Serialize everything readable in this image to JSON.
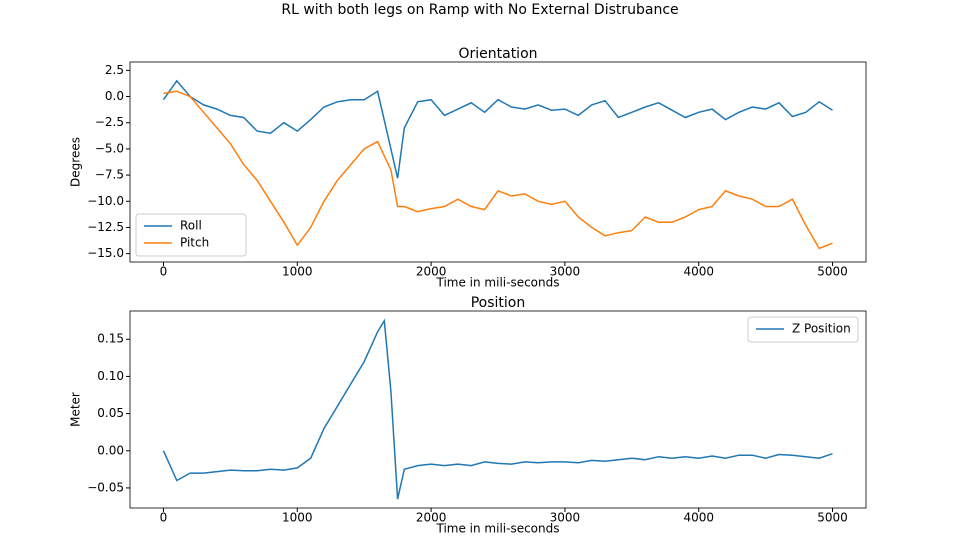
{
  "title": "RL with both legs on Ramp with No External Distrubance",
  "chart_data": [
    {
      "type": "line",
      "title": "Orientation",
      "xlabel": "Time in mili-seconds",
      "ylabel": "Degrees",
      "x": [
        0,
        100,
        200,
        300,
        400,
        500,
        600,
        700,
        800,
        900,
        1000,
        1100,
        1200,
        1300,
        1400,
        1500,
        1600,
        1700,
        1750,
        1800,
        1900,
        2000,
        2100,
        2200,
        2300,
        2400,
        2500,
        2600,
        2700,
        2800,
        2900,
        3000,
        3100,
        3200,
        3300,
        3400,
        3500,
        3600,
        3700,
        3800,
        3900,
        4000,
        4100,
        4200,
        4300,
        4400,
        4500,
        4600,
        4700,
        4800,
        4900,
        5000
      ],
      "series": [
        {
          "name": "Roll",
          "color": "#1f77b4",
          "values": [
            -0.3,
            1.5,
            0.0,
            -0.8,
            -1.2,
            -1.8,
            -2.0,
            -3.3,
            -3.5,
            -2.5,
            -3.3,
            -2.2,
            -1.0,
            -0.5,
            -0.3,
            -0.3,
            0.5,
            -5.0,
            -7.8,
            -3.0,
            -0.5,
            -0.3,
            -1.8,
            -1.2,
            -0.6,
            -1.5,
            -0.3,
            -1.0,
            -1.2,
            -0.8,
            -1.3,
            -1.2,
            -1.8,
            -0.8,
            -0.4,
            -2.0,
            -1.5,
            -1.0,
            -0.6,
            -1.3,
            -2.0,
            -1.5,
            -1.2,
            -2.2,
            -1.5,
            -1.0,
            -1.2,
            -0.6,
            -1.9,
            -1.5,
            -0.5,
            -1.3
          ]
        },
        {
          "name": "Pitch",
          "color": "#ff7f0e",
          "values": [
            0.3,
            0.5,
            0.0,
            -1.5,
            -3.0,
            -4.5,
            -6.5,
            -8.0,
            -10.0,
            -12.0,
            -14.2,
            -12.5,
            -10.0,
            -8.0,
            -6.5,
            -5.0,
            -4.3,
            -7.0,
            -10.5,
            -10.5,
            -11.0,
            -10.7,
            -10.5,
            -9.8,
            -10.5,
            -10.8,
            -9.0,
            -9.5,
            -9.3,
            -10.0,
            -10.3,
            -10.0,
            -11.5,
            -12.5,
            -13.3,
            -13.0,
            -12.8,
            -11.5,
            -12.0,
            -12.0,
            -11.5,
            -10.8,
            -10.5,
            -9.0,
            -9.5,
            -9.8,
            -10.5,
            -10.5,
            -9.8,
            -12.3,
            -14.5,
            -14.0
          ]
        }
      ],
      "xlim": [
        -250,
        5250
      ],
      "xticks": [
        0,
        1000,
        2000,
        3000,
        4000,
        5000
      ],
      "ylim": [
        -15.8,
        3.3
      ],
      "yticks": [
        2.5,
        {
          "value": 0,
          "label": "0.0"
        },
        {
          "value": -2.5,
          "label": "−2.5"
        },
        {
          "value": -5,
          "label": "−5.0"
        },
        {
          "value": -7.5,
          "label": "−7.5"
        },
        {
          "value": -10,
          "label": "−10.0"
        },
        {
          "value": -12.5,
          "label": "−12.5"
        },
        {
          "value": -15,
          "label": "−15.0"
        }
      ],
      "legend": "lower-left"
    },
    {
      "type": "line",
      "title": "Position",
      "xlabel": "Time in mili-seconds",
      "ylabel": "Meter",
      "x": [
        0,
        100,
        200,
        300,
        400,
        500,
        600,
        700,
        800,
        900,
        1000,
        1100,
        1200,
        1300,
        1400,
        1500,
        1600,
        1650,
        1700,
        1750,
        1800,
        1900,
        2000,
        2100,
        2200,
        2300,
        2400,
        2500,
        2600,
        2700,
        2800,
        2900,
        3000,
        3100,
        3200,
        3300,
        3400,
        3500,
        3600,
        3700,
        3800,
        3900,
        4000,
        4100,
        4200,
        4300,
        4400,
        4500,
        4600,
        4700,
        4800,
        4900,
        5000
      ],
      "series": [
        {
          "name": "Z Position",
          "color": "#1f77b4",
          "values": [
            0.0,
            -0.04,
            -0.03,
            -0.03,
            -0.028,
            -0.026,
            -0.027,
            -0.027,
            -0.025,
            -0.026,
            -0.023,
            -0.01,
            0.03,
            0.06,
            0.09,
            0.12,
            0.16,
            0.175,
            0.08,
            -0.065,
            -0.025,
            -0.02,
            -0.018,
            -0.02,
            -0.018,
            -0.02,
            -0.015,
            -0.017,
            -0.018,
            -0.015,
            -0.016,
            -0.015,
            -0.015,
            -0.016,
            -0.013,
            -0.014,
            -0.012,
            -0.01,
            -0.012,
            -0.008,
            -0.01,
            -0.008,
            -0.01,
            -0.007,
            -0.01,
            -0.006,
            -0.006,
            -0.01,
            -0.005,
            -0.006,
            -0.008,
            -0.01,
            -0.004
          ]
        }
      ],
      "xlim": [
        -250,
        5250
      ],
      "xticks": [
        0,
        1000,
        2000,
        3000,
        4000,
        5000
      ],
      "ylim": [
        -0.077,
        0.188
      ],
      "yticks": [
        0.15,
        {
          "value": 0.1,
          "label": "0.10"
        },
        0.05,
        {
          "value": 0,
          "label": "0.00"
        },
        {
          "value": -0.05,
          "label": "−0.05"
        }
      ],
      "legend": "upper-right"
    }
  ]
}
